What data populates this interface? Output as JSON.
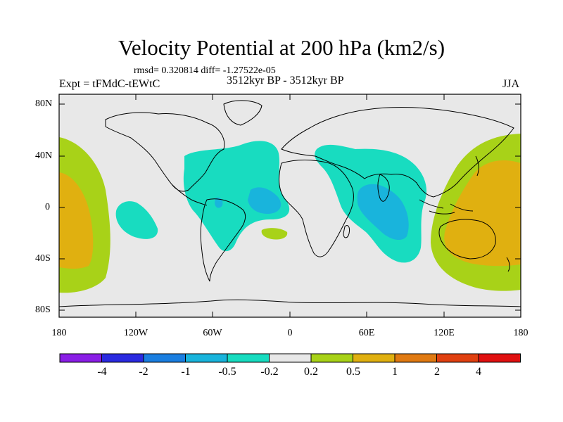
{
  "title": "Velocity Potential at 200 hPa (km2/s)",
  "stats": "rmsd= 0.320814 diff= -1.27522e-05",
  "experiment": "Expt = tFMdC-tEWtC",
  "period": "3512kyr BP - 3512kyr BP",
  "season": "JJA",
  "lat_ticks": [
    "80N",
    "40N",
    "0",
    "40S",
    "80S"
  ],
  "lon_ticks": [
    "180",
    "120W",
    "60W",
    "0",
    "60E",
    "120E",
    "180"
  ],
  "colorbar": {
    "labels": [
      "-4",
      "-2",
      "-1",
      "-0.5",
      "-0.2",
      "0.2",
      "0.5",
      "1",
      "2",
      "4"
    ],
    "colors": [
      "#8a1ee6",
      "#2a2ae0",
      "#1a7ee0",
      "#19b4dc",
      "#18dcc0",
      "#e8e8e8",
      "#a8d218",
      "#e0b010",
      "#e07a12",
      "#e04010",
      "#e01010"
    ]
  },
  "colors": {
    "ocean_bg": "#e8e8e8",
    "neg_weak": "#18dcc0",
    "neg_mid": "#19b4dc",
    "pos_weak": "#a8d218",
    "pos_mid": "#e0b010"
  }
}
